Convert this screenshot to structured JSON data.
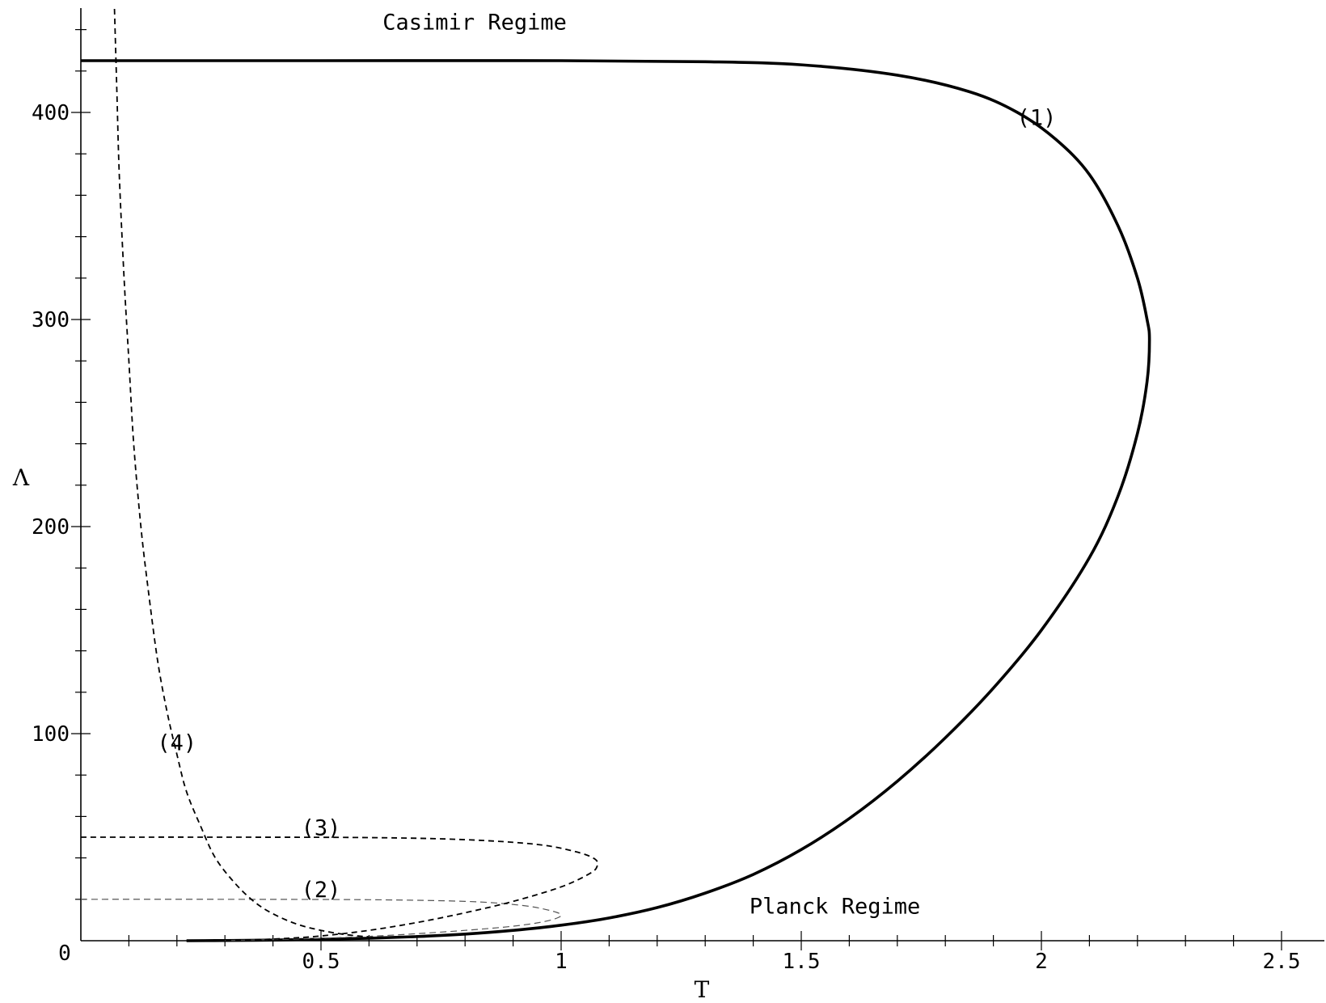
{
  "chart_data": {
    "type": "line",
    "title": "",
    "xlabel": "T",
    "ylabel": "Λ",
    "xlim": [
      0,
      2.58
    ],
    "ylim": [
      0,
      450
    ],
    "origin_label": "0",
    "x_ticks": [
      {
        "value": 0.5,
        "label": "0.5"
      },
      {
        "value": 1,
        "label": "1"
      },
      {
        "value": 1.5,
        "label": "1.5"
      },
      {
        "value": 2,
        "label": "2"
      },
      {
        "value": 2.5,
        "label": "2.5"
      }
    ],
    "y_ticks": [
      {
        "value": 100,
        "label": "100"
      },
      {
        "value": 200,
        "label": "200"
      },
      {
        "value": 300,
        "label": "300"
      },
      {
        "value": 400,
        "label": "400"
      }
    ],
    "annotations": [
      {
        "text": "Casimir Regime",
        "x": 0.82,
        "y": 440
      },
      {
        "text": "Planck Regime",
        "x": 1.57,
        "y": 13
      },
      {
        "text": "(1)",
        "x": 1.99,
        "y": 394
      },
      {
        "text": "(2)",
        "x": 0.5,
        "y": 21
      },
      {
        "text": "(3)",
        "x": 0.5,
        "y": 51
      },
      {
        "text": "(4)",
        "x": 0.2,
        "y": 92
      }
    ],
    "series": [
      {
        "label": "(1)",
        "style": "solid-thick",
        "x": [
          0,
          0.5,
          1.0,
          1.3,
          1.5,
          1.7,
          1.85,
          1.95,
          2.03,
          2.1,
          2.16,
          2.2,
          2.22,
          2.225,
          2.22,
          2.2,
          2.16,
          2.1,
          2.0,
          1.9,
          1.8,
          1.7,
          1.6,
          1.5,
          1.4,
          1.3,
          1.2,
          1.1,
          1.0,
          0.9,
          0.8,
          0.7,
          0.6,
          0.5,
          0.4,
          0.3,
          0.22
        ],
        "y": [
          425,
          425,
          425,
          424.5,
          423,
          418,
          410,
          400,
          387,
          370,
          345,
          320,
          300,
          290,
          270,
          245,
          215,
          185,
          150,
          122,
          98,
          77,
          59,
          44,
          32,
          23,
          16,
          11,
          7.5,
          5,
          3.2,
          2,
          1.2,
          0.7,
          0.3,
          0.1,
          0
        ]
      },
      {
        "label": "(2)",
        "style": "dashed-thin",
        "x": [
          0,
          0.3,
          0.6,
          0.8,
          0.9,
          0.96,
          1.0,
          0.97,
          0.9,
          0.8,
          0.7,
          0.6,
          0.5,
          0.4,
          0.3
        ],
        "y": [
          20,
          20,
          19.8,
          19,
          17.5,
          15.5,
          12.5,
          9.5,
          7,
          5,
          3.4,
          2.1,
          1.2,
          0.5,
          0.1
        ]
      },
      {
        "label": "(3)",
        "style": "dashed",
        "x": [
          0,
          0.3,
          0.6,
          0.8,
          0.95,
          1.03,
          1.07,
          1.075,
          1.06,
          1.0,
          0.9,
          0.8,
          0.7,
          0.6,
          0.5,
          0.4,
          0.3
        ],
        "y": [
          50,
          50,
          49.8,
          48.8,
          46.5,
          43,
          39.5,
          36,
          32.5,
          26,
          19,
          13.5,
          8.8,
          5,
          2.3,
          0.8,
          0.1
        ]
      },
      {
        "label": "(4)",
        "style": "dashed",
        "x": [
          0.07,
          0.075,
          0.08,
          0.09,
          0.1,
          0.11,
          0.125,
          0.14,
          0.16,
          0.18,
          0.2,
          0.22,
          0.25,
          0.28,
          0.32,
          0.36,
          0.4,
          0.45,
          0.5,
          0.55,
          0.6
        ],
        "y": [
          450,
          410,
          370,
          320,
          280,
          240,
          200,
          170,
          135,
          110,
          90,
          72,
          55,
          40,
          28,
          19,
          13,
          8,
          5,
          3,
          1.8
        ]
      }
    ]
  }
}
